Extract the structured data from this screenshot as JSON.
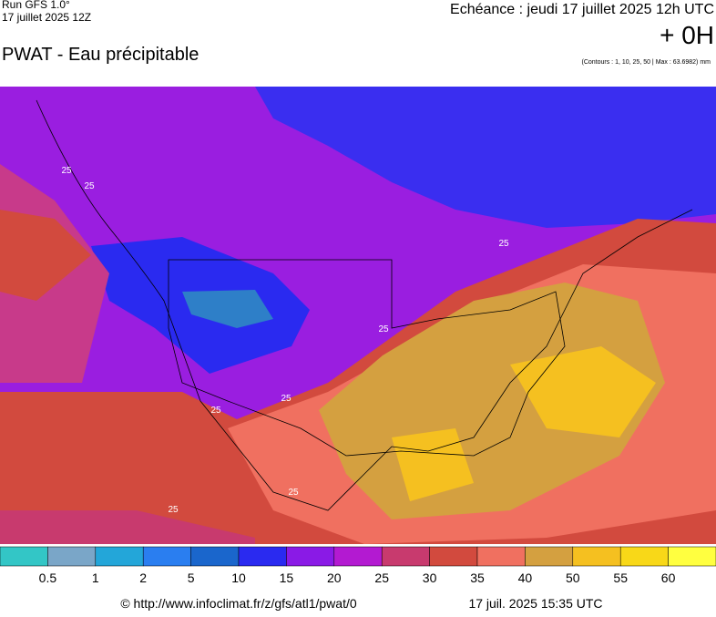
{
  "header": {
    "run": "Run GFS 1.0°",
    "date": "17 juillet 2025 12Z",
    "title": "PWAT - Eau précipitable",
    "echeance": "Echéance : jeudi 17 juillet 2025 12h UTC",
    "offset": "+ 0H",
    "contours": "(Contours : 1, 10, 25, 50 | Max : 63.6982) mm"
  },
  "contour_labels": [
    "25",
    "25",
    "25",
    "25",
    "25",
    "25",
    "25",
    "25"
  ],
  "colorbar": {
    "colors": [
      "#33c6c6",
      "#7aa6c8",
      "#23a6d9",
      "#2a7ef0",
      "#1a66cc",
      "#2a2af0",
      "#8a1ae6",
      "#b31ad1",
      "#c83a6e",
      "#d24a3e",
      "#f07060",
      "#d4a040",
      "#f5c020",
      "#f8d818",
      "#ffff40"
    ],
    "labels": [
      "0.5",
      "1",
      "2",
      "5",
      "10",
      "15",
      "20",
      "25",
      "30",
      "35",
      "40",
      "50",
      "55",
      "60"
    ]
  },
  "footer": {
    "source": "© http://www.infoclimat.fr/z/gfs/atl1/pwat/0",
    "timestamp": "17 juil. 2025 15:35 UTC"
  }
}
